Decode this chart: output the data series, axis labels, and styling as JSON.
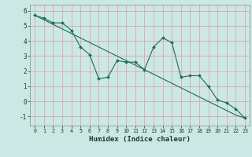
{
  "title": "",
  "xlabel": "Humidex (Indice chaleur)",
  "ylabel": "",
  "background_color": "#cce8e4",
  "grid_color": "#dba8a8",
  "line_color": "#1a6b5a",
  "xlim": [
    -0.5,
    23.5
  ],
  "ylim": [
    -1.6,
    6.4
  ],
  "yticks": [
    -1,
    0,
    1,
    2,
    3,
    4,
    5,
    6
  ],
  "xticks": [
    0,
    1,
    2,
    3,
    4,
    5,
    6,
    7,
    8,
    9,
    10,
    11,
    12,
    13,
    14,
    15,
    16,
    17,
    18,
    19,
    20,
    21,
    22,
    23
  ],
  "line1_x": [
    0,
    1,
    2,
    3,
    4,
    5,
    6,
    7,
    8,
    9,
    10,
    11,
    12,
    13,
    14,
    15,
    16,
    17,
    18,
    19,
    20,
    21,
    22,
    23
  ],
  "line1_y": [
    5.7,
    5.5,
    5.2,
    5.2,
    4.7,
    3.6,
    3.1,
    1.5,
    1.6,
    2.7,
    2.6,
    2.6,
    2.1,
    3.6,
    4.2,
    3.9,
    1.6,
    1.7,
    1.7,
    1.0,
    0.1,
    -0.1,
    -0.5,
    -1.1
  ],
  "line2_x": [
    0,
    1,
    2,
    3,
    4,
    5,
    6,
    7,
    8,
    9,
    10,
    11,
    12,
    13,
    14,
    15,
    16,
    17,
    18,
    19,
    20,
    21,
    22,
    23
  ],
  "line2_y": [
    5.7,
    5.4,
    5.1,
    4.8,
    4.5,
    4.2,
    3.9,
    3.6,
    3.3,
    3.0,
    2.7,
    2.4,
    2.1,
    1.8,
    1.5,
    1.2,
    0.9,
    0.6,
    0.3,
    0.0,
    -0.3,
    -0.6,
    -0.9,
    -1.1
  ]
}
